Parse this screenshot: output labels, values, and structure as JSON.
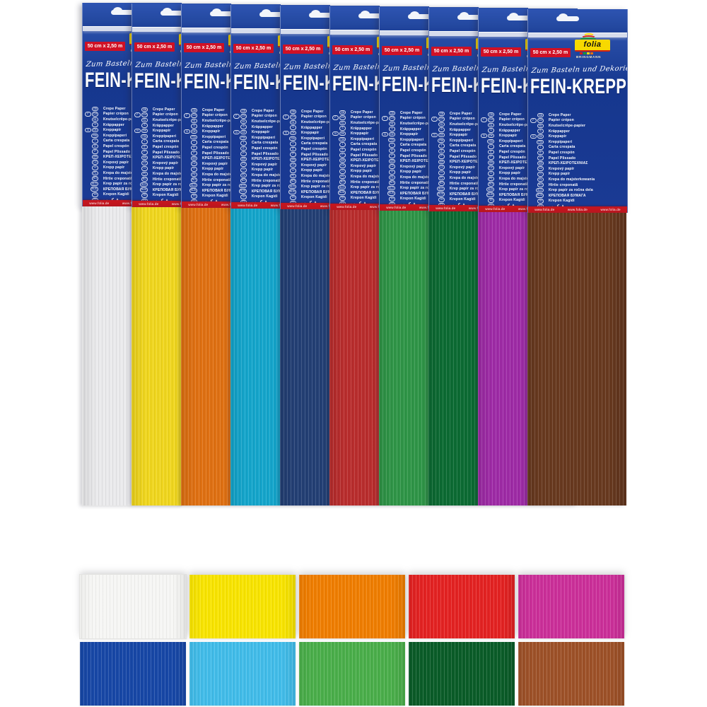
{
  "product": {
    "pack_count": 10,
    "brand": "folia",
    "brand_sub": "BRINGMANN",
    "size_badge": "50 cm x 2,50 m",
    "tagline": "Zum Basteln und Dekorieren",
    "title": "FEIN-KREPP",
    "website": "www.folia.de",
    "website_repeat": 3,
    "languages": [
      {
        "codes": [
          "GB"
        ],
        "label": "Crepe Paper"
      },
      {
        "codes": [
          "F",
          "CH"
        ],
        "label": "Papier crépon"
      },
      {
        "codes": [
          "NL"
        ],
        "label": "Knutselcrêpe-papier"
      },
      {
        "codes": [
          "S"
        ],
        "label": "Kräppapper"
      },
      {
        "codes": [
          "N",
          "DK"
        ],
        "label": "Kreppapir"
      },
      {
        "codes": [
          "FIN"
        ],
        "label": "Kreppipaperi"
      },
      {
        "codes": [
          "I"
        ],
        "label": "Carta crespata"
      },
      {
        "codes": [
          "E"
        ],
        "label": "Papel crespón"
      },
      {
        "codes": [
          "P"
        ],
        "label": "Papel Plissado"
      },
      {
        "codes": [
          "GR"
        ],
        "label": "ΚΡΕΠ-ΧΕΙΡΟΤΕΧΝΙΑΣ"
      },
      {
        "codes": [
          "CZ"
        ],
        "label": "Krepový papír"
      },
      {
        "codes": [
          "H"
        ],
        "label": "Krepp papír"
      },
      {
        "codes": [
          "PL"
        ],
        "label": "Krepa do majsterkowania"
      },
      {
        "codes": [
          "RO"
        ],
        "label": "Hîrtie creponată"
      },
      {
        "codes": [
          "SLO"
        ],
        "label": "Krep papir za ročna dela"
      },
      {
        "codes": [
          "RUS"
        ],
        "label": "КРЕПОВАЯ БУМАГА"
      },
      {
        "codes": [
          "TR"
        ],
        "label": "Krepon Kagidi"
      },
      {
        "codes": [
          "SA"
        ],
        "label": "ورق كريب"
      }
    ]
  },
  "colors": {
    "pack_blue": "#1a3a94",
    "badge_red": "#d01125",
    "strip_red": "#c4161f",
    "logo_yellow": "#f7d900",
    "logo_underline_red": "#d32011",
    "logo_squares": [
      "#1646a0",
      "#d32011",
      "#1a9a30",
      "#ffd800",
      "#e87000"
    ],
    "papers": [
      {
        "name": "white",
        "hex": "#eaeaec"
      },
      {
        "name": "yellow",
        "hex": "#f0d61e"
      },
      {
        "name": "orange",
        "hex": "#df7012"
      },
      {
        "name": "light-blue",
        "hex": "#14a5cb"
      },
      {
        "name": "dark-blue",
        "hex": "#233f74"
      },
      {
        "name": "red",
        "hex": "#b92d2d"
      },
      {
        "name": "green",
        "hex": "#2f9547"
      },
      {
        "name": "dark-green",
        "hex": "#0c6b33"
      },
      {
        "name": "purple",
        "hex": "#9e2ba6"
      },
      {
        "name": "brown",
        "hex": "#68391f"
      }
    ],
    "swatches": [
      [
        {
          "name": "white",
          "hex": "#f6f6f4"
        },
        {
          "name": "yellow",
          "hex": "#f8e400"
        },
        {
          "name": "orange",
          "hex": "#ef7d00"
        },
        {
          "name": "red",
          "hex": "#e32222"
        },
        {
          "name": "pink",
          "hex": "#cb2f99"
        }
      ],
      [
        {
          "name": "blue",
          "hex": "#1747a6"
        },
        {
          "name": "light-blue",
          "hex": "#41bce9"
        },
        {
          "name": "green",
          "hex": "#4aae4a"
        },
        {
          "name": "dark-green",
          "hex": "#0a5c28"
        },
        {
          "name": "brown",
          "hex": "#9d5128"
        }
      ]
    ]
  }
}
